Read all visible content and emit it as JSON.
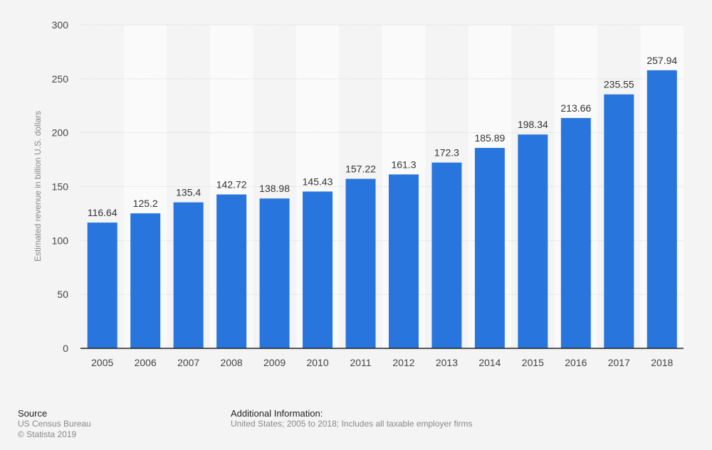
{
  "chart_data": {
    "type": "bar",
    "categories": [
      "2005",
      "2006",
      "2007",
      "2008",
      "2009",
      "2010",
      "2011",
      "2012",
      "2013",
      "2014",
      "2015",
      "2016",
      "2017",
      "2018"
    ],
    "values": [
      116.64,
      125.2,
      135.4,
      142.72,
      138.98,
      145.43,
      157.22,
      161.3,
      172.3,
      185.89,
      198.34,
      213.66,
      235.55,
      257.94
    ],
    "value_labels": [
      "116.64",
      "125.2",
      "135.4",
      "142.72",
      "138.98",
      "145.43",
      "157.22",
      "161.3",
      "172.3",
      "185.89",
      "198.34",
      "213.66",
      "235.55",
      "257.94"
    ],
    "xlabel": "",
    "ylabel": "Estimated revenue in billion U.S. dollars",
    "ylim": [
      0,
      300
    ],
    "yticks": [
      0,
      50,
      100,
      150,
      200,
      250,
      300
    ],
    "grid": true,
    "bar_color": "#2876dd"
  },
  "footer": {
    "source_title": "Source",
    "source_name": "US Census Bureau",
    "copyright": "© Statista 2019",
    "info_title": "Additional Information:",
    "info_text": "United States; 2005 to 2018; Includes all taxable employer firms"
  }
}
